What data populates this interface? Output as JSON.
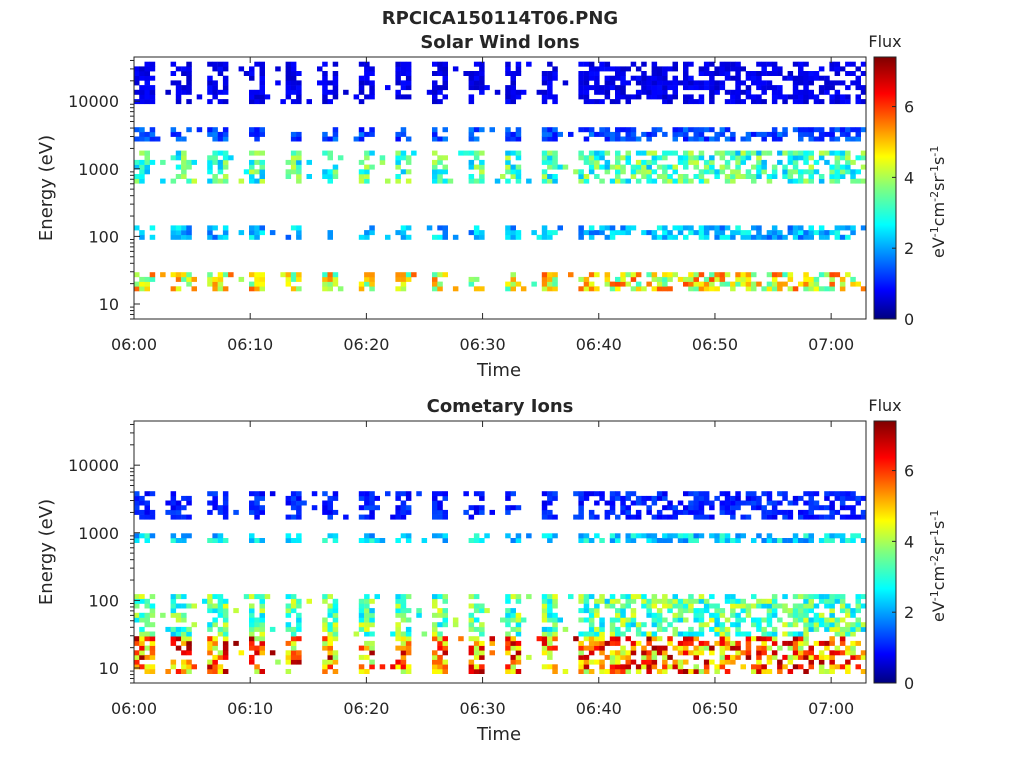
{
  "figure_title": "RPCICA150114T06.PNG",
  "chart_data": [
    {
      "type": "heatmap",
      "title": "Solar Wind Ions",
      "xlabel": "Time",
      "ylabel": "Energy (eV)",
      "x_ticks": [
        "06:00",
        "06:10",
        "06:20",
        "06:30",
        "06:40",
        "06:50",
        "07:00"
      ],
      "y_ticks": [
        "10",
        "100",
        "1000",
        "10000"
      ],
      "y_scale": "log",
      "y_range": [
        6,
        45000
      ],
      "x_range_minutes": [
        0,
        63
      ],
      "colorbar": {
        "label": "Flux",
        "unit": "eV-1cm-2sr-1s-1",
        "range": [
          0,
          7.4
        ],
        "ticks": [
          "0",
          "2",
          "4",
          "6"
        ],
        "colormap": "jet"
      },
      "bands": [
        {
          "e_min": 15,
          "e_max": 30,
          "value": 4.8,
          "pattern": "bursts every 3 min until 06:38, continuous after"
        },
        {
          "e_min": 90,
          "e_max": 140,
          "value": 2.4,
          "pattern": "bursts every 3 min"
        },
        {
          "e_min": 600,
          "e_max": 2000,
          "value": 3.4,
          "pattern": "bursts every 3 min until 06:38, broad after"
        },
        {
          "e_min": 2500,
          "e_max": 4000,
          "value": 1.5,
          "pattern": "bursts"
        },
        {
          "e_min": 9000,
          "e_max": 40000,
          "value": 0.8,
          "pattern": "sparse"
        }
      ]
    },
    {
      "type": "heatmap",
      "title": "Cometary Ions",
      "xlabel": "Time",
      "ylabel": "Energy (eV)",
      "x_ticks": [
        "06:00",
        "06:10",
        "06:20",
        "06:30",
        "06:40",
        "06:50",
        "07:00"
      ],
      "y_ticks": [
        "10",
        "100",
        "1000",
        "10000"
      ],
      "y_scale": "log",
      "y_range": [
        6,
        45000
      ],
      "x_range_minutes": [
        0,
        63
      ],
      "colorbar": {
        "label": "Flux",
        "unit": "eV-1cm-2sr-1s-1",
        "range": [
          0,
          7.4
        ],
        "ticks": [
          "0",
          "2",
          "4",
          "6"
        ],
        "colormap": "jet"
      },
      "bands": [
        {
          "e_min": 8,
          "e_max": 30,
          "value": 5.8,
          "pattern": "bursts every 3 min until 06:38, continuous after"
        },
        {
          "e_min": 30,
          "e_max": 130,
          "value": 3.6,
          "pattern": "bursts every 3 min until 06:38, broad after"
        },
        {
          "e_min": 700,
          "e_max": 1000,
          "value": 2.6,
          "pattern": "sparse"
        },
        {
          "e_min": 1500,
          "e_max": 4000,
          "value": 1.2,
          "pattern": "bursts"
        }
      ]
    }
  ]
}
